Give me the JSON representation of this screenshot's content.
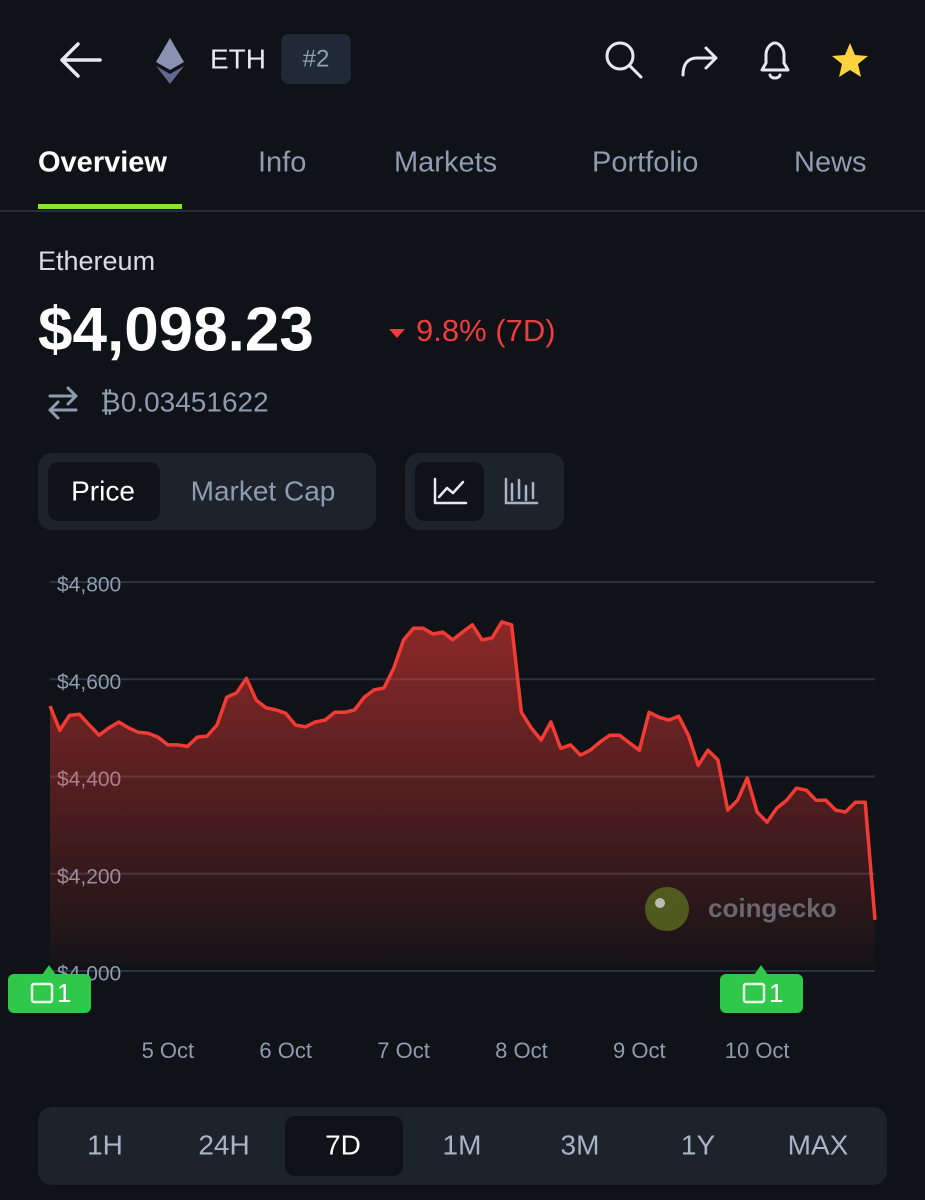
{
  "header": {
    "symbol": "ETH",
    "rank": "#2"
  },
  "tabs": [
    "Overview",
    "Info",
    "Markets",
    "Portfolio",
    "News"
  ],
  "coin": {
    "name": "Ethereum",
    "price": "$4,098.23",
    "change": "9.8% (7D)",
    "btc_price": "₿0.03451622"
  },
  "chart_toggle": [
    "Price",
    "Market Cap"
  ],
  "chart_data": {
    "type": "line",
    "color": "#f23b35",
    "grid": true,
    "watermark": "coingecko",
    "news_markers": [
      "1",
      "1"
    ],
    "ylim": [
      4000,
      4800
    ],
    "yticks": [
      {
        "value": 4000,
        "label": "$4,000"
      },
      {
        "value": 4200,
        "label": "$4,200"
      },
      {
        "value": 4400,
        "label": "$4,400"
      },
      {
        "value": 4600,
        "label": "$4,600"
      },
      {
        "value": 4800,
        "label": "$4,800"
      }
    ],
    "categories": [
      null,
      null,
      null,
      null,
      null,
      null,
      null,
      null,
      null,
      null,
      null,
      null,
      "5 Oct",
      null,
      null,
      null,
      null,
      null,
      null,
      null,
      null,
      null,
      null,
      null,
      "6 Oct",
      null,
      null,
      null,
      null,
      null,
      null,
      null,
      null,
      null,
      null,
      null,
      "7 Oct",
      null,
      null,
      null,
      null,
      null,
      null,
      null,
      null,
      null,
      null,
      null,
      "8 Oct",
      null,
      null,
      null,
      null,
      null,
      null,
      null,
      null,
      null,
      null,
      null,
      "9 Oct",
      null,
      null,
      null,
      null,
      null,
      null,
      null,
      null,
      null,
      null,
      null,
      "10 Oct",
      null,
      null,
      null,
      null,
      null,
      null,
      null,
      null,
      null,
      null,
      null,
      null
    ],
    "values": [
      4545,
      4495,
      4526,
      4528,
      4506,
      4485,
      4500,
      4512,
      4500,
      4491,
      4489,
      4481,
      4465,
      4465,
      4462,
      4481,
      4483,
      4506,
      4563,
      4572,
      4602,
      4557,
      4541,
      4537,
      4530,
      4506,
      4502,
      4512,
      4516,
      4532,
      4532,
      4537,
      4563,
      4578,
      4582,
      4623,
      4681,
      4705,
      4705,
      4693,
      4697,
      4681,
      4697,
      4712,
      4681,
      4685,
      4718,
      4712,
      4532,
      4500,
      4475,
      4512,
      4458,
      4465,
      4444,
      4454,
      4471,
      4485,
      4485,
      4469,
      4454,
      4532,
      4522,
      4516,
      4524,
      4485,
      4423,
      4454,
      4434,
      4331,
      4351,
      4397,
      4327,
      4306,
      4335,
      4351,
      4376,
      4372,
      4351,
      4351,
      4331,
      4327,
      4347,
      4347,
      4105
    ]
  },
  "time_ranges": [
    "1H",
    "24H",
    "7D",
    "1M",
    "3M",
    "1Y",
    "MAX"
  ]
}
